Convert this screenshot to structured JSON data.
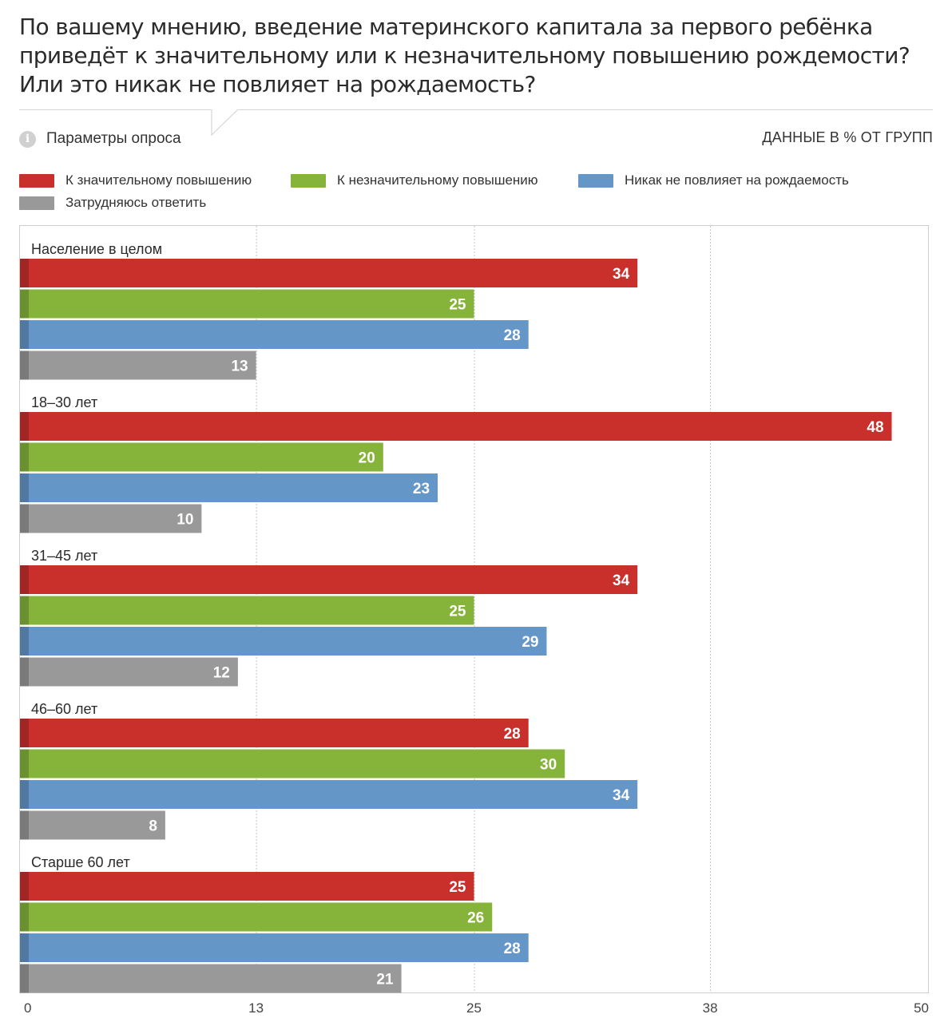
{
  "header": {
    "title_lines": [
      "По вашему мнению, введение материнского капитала за первого ребёнка",
      "приведёт к значительному или к незначительному повышению рождемости?",
      "Или это никак не повлияет на рождаемость?"
    ],
    "info_icon": "info-icon",
    "params_label": "Параметры опроса",
    "units_label": "ДАННЫЕ В % ОТ ГРУПП"
  },
  "colors": {
    "red": "#c9302c",
    "green": "#86b43b",
    "blue": "#6496c8",
    "gray": "#999999"
  },
  "chart_data": {
    "type": "bar",
    "orientation": "horizontal",
    "categories": [
      "Население в целом",
      "18–30 лет",
      "31–45 лет",
      "46–60 лет",
      "Старше 60 лет"
    ],
    "series": [
      {
        "name": "К значительному повышению",
        "color": "#c9302c",
        "values": [
          34,
          48,
          34,
          28,
          25
        ]
      },
      {
        "name": "К незначительному повышению",
        "color": "#86b43b",
        "values": [
          25,
          20,
          25,
          30,
          26
        ]
      },
      {
        "name": "Никак не повлияет на рождаемость",
        "color": "#6496c8",
        "values": [
          28,
          23,
          29,
          34,
          28
        ]
      },
      {
        "name": "Затрудняюсь ответить",
        "color": "#999999",
        "values": [
          13,
          10,
          12,
          8,
          21
        ]
      }
    ],
    "xlim": [
      0,
      50
    ],
    "xticks": [
      0,
      13,
      25,
      38,
      50
    ],
    "grid": true,
    "legend": "top"
  }
}
